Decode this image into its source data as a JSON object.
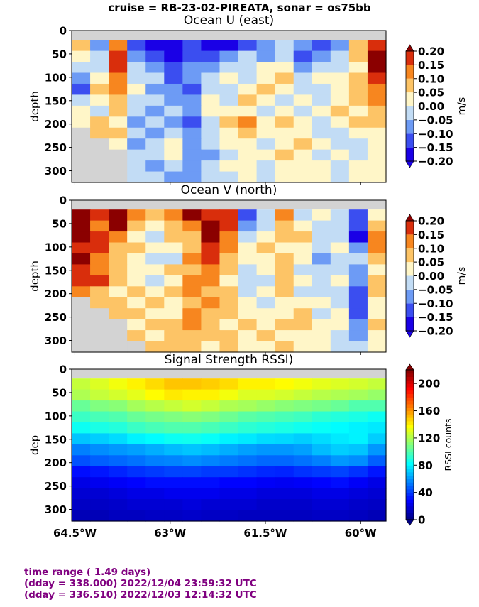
{
  "figure": {
    "suptitle": "cruise = RB-23-02-PIREATA,  sonar = os75bb",
    "footer": [
      "time range ( 1.49 days)",
      "(dday = 338.000) 2022/12/04 23:59:32 UTC",
      "(dday = 336.510) 2022/12/03 12:14:32 UTC"
    ],
    "colors": {
      "footer_text": "#800080",
      "no_data": "#d3d3d3"
    }
  },
  "chart_data": [
    {
      "type": "heatmap",
      "title": "Ocean U (east)",
      "ylabel": "depth",
      "yticks": [
        "0",
        "50",
        "100",
        "150",
        "200",
        "250",
        "300"
      ],
      "ytick_values": [
        0,
        50,
        100,
        150,
        200,
        250,
        300
      ],
      "ylim": [
        325,
        0
      ],
      "xlim": [
        -64.55,
        -59.6
      ],
      "xticks_visible": false,
      "colorbar": {
        "label": "m/s",
        "ticks": [
          "0.20",
          "0.15",
          "0.10",
          "0.05",
          "0.00",
          "−0.05",
          "−0.10",
          "−0.15",
          "−0.20"
        ],
        "tick_values": [
          0.2,
          0.15,
          0.1,
          0.05,
          0.0,
          -0.05,
          -0.1,
          -0.15,
          -0.2
        ],
        "colormap": "RdYlBu_r",
        "extend": "both"
      },
      "x_lon": [
        -64.5,
        -64.2,
        -63.9,
        -63.6,
        -63.3,
        -63.0,
        -62.7,
        -62.4,
        -62.1,
        -61.8,
        -61.5,
        -61.2,
        -60.9,
        -60.6,
        -60.3,
        -60.0,
        -59.7
      ],
      "depth_bins": [
        25,
        50,
        75,
        100,
        125,
        150,
        175,
        200,
        225,
        250,
        275,
        300,
        325
      ],
      "values": [
        [
          0.05,
          -0.1,
          0.1,
          -0.15,
          -0.2,
          -0.2,
          -0.15,
          -0.2,
          -0.2,
          -0.15,
          -0.1,
          -0.05,
          -0.1,
          -0.15,
          -0.1,
          0.05,
          0.15
        ],
        [
          0.0,
          -0.05,
          0.15,
          -0.1,
          -0.15,
          -0.2,
          -0.15,
          -0.15,
          -0.1,
          -0.05,
          -0.1,
          -0.05,
          -0.15,
          -0.1,
          -0.05,
          0.05,
          0.2
        ],
        [
          -0.05,
          -0.05,
          0.15,
          -0.05,
          -0.1,
          -0.15,
          -0.1,
          -0.1,
          -0.05,
          -0.05,
          0.0,
          0.0,
          -0.1,
          -0.05,
          -0.05,
          0.0,
          0.2
        ],
        [
          -0.1,
          0.0,
          0.1,
          -0.05,
          -0.05,
          -0.15,
          -0.1,
          -0.05,
          0.0,
          -0.05,
          0.0,
          0.05,
          -0.05,
          0.0,
          0.0,
          0.05,
          0.15
        ],
        [
          -0.15,
          0.05,
          0.1,
          0.0,
          -0.1,
          -0.1,
          -0.15,
          -0.05,
          -0.05,
          0.0,
          0.05,
          0.0,
          -0.05,
          -0.05,
          0.0,
          0.05,
          0.1
        ],
        [
          -0.05,
          0.0,
          0.05,
          -0.05,
          -0.05,
          -0.1,
          -0.1,
          0.0,
          -0.05,
          0.05,
          0.0,
          -0.05,
          0.0,
          -0.05,
          0.0,
          0.05,
          0.1
        ],
        [
          0.0,
          -0.05,
          0.05,
          -0.05,
          -0.1,
          -0.05,
          -0.1,
          0.0,
          0.0,
          0.0,
          -0.05,
          0.0,
          -0.05,
          0.0,
          0.05,
          0.0,
          0.05
        ],
        [
          0.0,
          0.05,
          0.0,
          -0.1,
          -0.05,
          -0.1,
          -0.15,
          -0.05,
          0.05,
          0.1,
          0.0,
          0.05,
          0.0,
          -0.05,
          0.0,
          0.05,
          0.05
        ],
        [
          null,
          0.05,
          0.05,
          -0.05,
          -0.1,
          -0.05,
          -0.1,
          -0.05,
          0.0,
          0.05,
          0.0,
          0.0,
          0.0,
          -0.05,
          -0.05,
          0.0,
          0.0
        ],
        [
          null,
          null,
          0.0,
          -0.1,
          -0.05,
          0.0,
          -0.1,
          -0.05,
          0.0,
          0.0,
          -0.05,
          0.0,
          0.05,
          0.0,
          -0.05,
          -0.05,
          0.0
        ],
        [
          null,
          null,
          null,
          -0.05,
          -0.05,
          0.0,
          -0.1,
          -0.1,
          -0.05,
          0.0,
          0.0,
          0.05,
          0.0,
          -0.05,
          0.0,
          -0.05,
          0.0
        ],
        [
          null,
          null,
          null,
          -0.05,
          -0.1,
          -0.05,
          -0.1,
          -0.05,
          0.0,
          0.0,
          -0.05,
          0.0,
          0.0,
          0.0,
          -0.05,
          0.0,
          0.0
        ],
        [
          null,
          null,
          null,
          -0.05,
          -0.05,
          -0.1,
          -0.1,
          -0.05,
          -0.05,
          0.0,
          -0.05,
          0.0,
          0.0,
          0.0,
          -0.05,
          0.0,
          0.0
        ]
      ]
    },
    {
      "type": "heatmap",
      "title": "Ocean V (north)",
      "ylabel": "depth",
      "yticks": [
        "0",
        "50",
        "100",
        "150",
        "200",
        "250",
        "300"
      ],
      "ytick_values": [
        0,
        50,
        100,
        150,
        200,
        250,
        300
      ],
      "ylim": [
        325,
        0
      ],
      "xlim": [
        -64.55,
        -59.6
      ],
      "xticks_visible": false,
      "colorbar": {
        "label": "m/s",
        "ticks": [
          "0.20",
          "0.15",
          "0.10",
          "0.05",
          "0.00",
          "−0.05",
          "−0.10",
          "−0.15",
          "−0.20"
        ],
        "tick_values": [
          0.2,
          0.15,
          0.1,
          0.05,
          0.0,
          -0.05,
          -0.1,
          -0.15,
          -0.2
        ],
        "colormap": "RdYlBu_r",
        "extend": "both"
      },
      "x_lon": [
        -64.5,
        -64.2,
        -63.9,
        -63.6,
        -63.3,
        -63.0,
        -62.7,
        -62.4,
        -62.1,
        -61.8,
        -61.5,
        -61.2,
        -60.9,
        -60.6,
        -60.3,
        -60.0,
        -59.7
      ],
      "depth_bins": [
        25,
        50,
        75,
        100,
        125,
        150,
        175,
        200,
        225,
        250,
        275,
        300,
        325
      ],
      "values": [
        [
          0.2,
          0.15,
          0.2,
          0.1,
          0.05,
          0.1,
          0.2,
          0.15,
          0.15,
          -0.15,
          -0.05,
          0.1,
          -0.05,
          0.0,
          -0.05,
          -0.15,
          0.0
        ],
        [
          0.2,
          0.1,
          0.2,
          0.05,
          0.0,
          0.05,
          0.1,
          0.2,
          0.15,
          -0.1,
          -0.05,
          0.05,
          0.0,
          -0.05,
          -0.05,
          -0.15,
          0.05
        ],
        [
          0.2,
          0.15,
          0.1,
          0.0,
          -0.05,
          0.05,
          0.05,
          0.2,
          0.1,
          -0.05,
          0.0,
          0.05,
          0.05,
          -0.05,
          -0.05,
          -0.2,
          0.1
        ],
        [
          0.15,
          0.15,
          0.05,
          0.05,
          0.0,
          0.0,
          0.05,
          0.15,
          0.1,
          0.0,
          0.05,
          0.0,
          0.0,
          -0.05,
          0.0,
          -0.1,
          0.1
        ],
        [
          0.2,
          0.1,
          0.05,
          0.0,
          -0.05,
          -0.05,
          0.1,
          0.15,
          0.05,
          0.0,
          0.0,
          0.05,
          0.0,
          -0.1,
          -0.05,
          -0.05,
          0.05
        ],
        [
          0.15,
          0.1,
          0.05,
          0.0,
          0.0,
          0.05,
          0.05,
          0.1,
          0.05,
          -0.05,
          0.0,
          0.05,
          -0.05,
          -0.05,
          -0.05,
          -0.1,
          0.0
        ],
        [
          0.15,
          0.15,
          0.05,
          0.0,
          -0.05,
          0.0,
          0.1,
          0.1,
          0.0,
          -0.05,
          -0.05,
          0.05,
          0.0,
          -0.05,
          0.0,
          -0.1,
          0.05
        ],
        [
          0.1,
          0.05,
          0.0,
          0.05,
          0.0,
          0.05,
          0.1,
          0.05,
          0.05,
          -0.05,
          0.0,
          0.05,
          -0.05,
          -0.05,
          -0.05,
          -0.15,
          0.05
        ],
        [
          null,
          0.05,
          0.05,
          0.0,
          0.05,
          0.0,
          0.05,
          0.1,
          0.05,
          0.0,
          -0.05,
          0.0,
          0.0,
          0.0,
          -0.05,
          -0.15,
          0.0
        ],
        [
          null,
          null,
          0.05,
          0.05,
          0.0,
          0.0,
          0.1,
          0.05,
          0.05,
          0.0,
          0.0,
          0.0,
          0.05,
          -0.05,
          0.0,
          -0.15,
          0.0
        ],
        [
          null,
          null,
          null,
          0.0,
          0.05,
          0.05,
          0.1,
          0.05,
          0.0,
          0.05,
          0.0,
          0.05,
          0.05,
          0.0,
          0.0,
          -0.1,
          0.05
        ],
        [
          null,
          null,
          null,
          0.05,
          0.0,
          0.05,
          0.05,
          0.05,
          0.05,
          0.0,
          0.05,
          0.0,
          0.0,
          0.0,
          -0.05,
          -0.1,
          0.0
        ],
        [
          null,
          null,
          null,
          null,
          0.05,
          0.05,
          0.05,
          0.0,
          0.05,
          0.0,
          0.0,
          0.05,
          0.0,
          0.0,
          -0.05,
          -0.05,
          0.0
        ]
      ]
    },
    {
      "type": "heatmap",
      "title": "Signal Strength RSSI)",
      "ylabel": "dep",
      "yticks": [
        "0",
        "50",
        "100",
        "150",
        "200",
        "250",
        "300"
      ],
      "ytick_values": [
        0,
        50,
        100,
        150,
        200,
        250,
        300
      ],
      "ylim": [
        325,
        0
      ],
      "xlim": [
        -64.55,
        -59.6
      ],
      "xticks": [
        "64.5°W",
        "63°W",
        "61.5°W",
        "60°W"
      ],
      "xtick_values": [
        -64.5,
        -63.0,
        -61.5,
        -60.0
      ],
      "colorbar": {
        "label": "RSSI counts",
        "ticks": [
          "200",
          "160",
          "120",
          "80",
          "40",
          "0"
        ],
        "tick_values": [
          200,
          160,
          120,
          80,
          40,
          0
        ],
        "range": [
          0,
          220
        ],
        "colormap": "jet",
        "extend": "neither"
      },
      "x_lon": [
        -64.5,
        -64.2,
        -63.9,
        -63.6,
        -63.3,
        -63.0,
        -62.7,
        -62.4,
        -62.1,
        -61.8,
        -61.5,
        -61.2,
        -60.9,
        -60.6,
        -60.3,
        -60.0,
        -59.7
      ],
      "depth_bins": [
        25,
        50,
        75,
        100,
        125,
        150,
        175,
        200,
        225,
        250,
        275,
        300,
        325
      ],
      "values": [
        [
          125,
          130,
          135,
          140,
          145,
          150,
          150,
          148,
          145,
          140,
          140,
          138,
          135,
          132,
          130,
          128,
          125
        ],
        [
          120,
          125,
          128,
          132,
          138,
          142,
          140,
          140,
          135,
          130,
          130,
          128,
          125,
          122,
          120,
          118,
          115
        ],
        [
          105,
          110,
          112,
          118,
          122,
          125,
          128,
          125,
          120,
          118,
          115,
          112,
          110,
          108,
          105,
          100,
          100
        ],
        [
          95,
          98,
          100,
          105,
          108,
          110,
          112,
          110,
          106,
          102,
          100,
          98,
          96,
          92,
          90,
          88,
          85
        ],
        [
          85,
          88,
          90,
          95,
          98,
          100,
          100,
          98,
          95,
          92,
          90,
          88,
          86,
          84,
          82,
          80,
          78
        ],
        [
          70,
          72,
          75,
          80,
          82,
          85,
          86,
          84,
          80,
          78,
          75,
          74,
          72,
          75,
          78,
          80,
          72
        ],
        [
          55,
          58,
          60,
          62,
          65,
          68,
          70,
          68,
          65,
          62,
          60,
          60,
          62,
          68,
          72,
          70,
          60
        ],
        [
          45,
          48,
          50,
          52,
          55,
          56,
          58,
          56,
          54,
          52,
          50,
          50,
          52,
          55,
          60,
          58,
          48
        ],
        [
          30,
          32,
          35,
          38,
          40,
          42,
          42,
          40,
          40,
          38,
          36,
          35,
          38,
          40,
          42,
          38,
          32
        ],
        [
          22,
          24,
          26,
          28,
          30,
          30,
          30,
          30,
          28,
          28,
          26,
          25,
          26,
          28,
          30,
          26,
          22
        ],
        [
          18,
          18,
          20,
          22,
          22,
          24,
          24,
          24,
          22,
          22,
          20,
          20,
          20,
          22,
          22,
          20,
          18
        ],
        [
          15,
          15,
          16,
          18,
          18,
          18,
          20,
          18,
          18,
          18,
          16,
          16,
          16,
          18,
          18,
          16,
          15
        ],
        [
          12,
          12,
          14,
          14,
          15,
          15,
          16,
          15,
          15,
          14,
          14,
          14,
          14,
          15,
          15,
          14,
          12
        ]
      ]
    }
  ]
}
